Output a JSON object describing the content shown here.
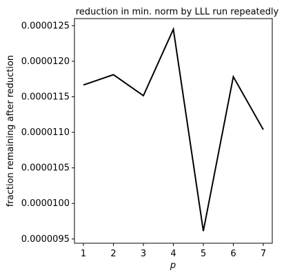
{
  "chart_data": {
    "type": "line",
    "title": "reduction in min. norm by LLL run repeatedly",
    "xlabel": "p",
    "ylabel": "fraction remaining after reduction",
    "x": [
      1,
      2,
      3,
      4,
      5,
      6,
      7
    ],
    "series": [
      {
        "values": [
          1.16661e-05,
          1.18113e-05,
          1.15158e-05,
          1.24505e-05,
          9.6116e-06,
          1.17828e-05,
          1.10378e-05
        ],
        "color": "#000000"
      }
    ],
    "xticks": [
      1,
      2,
      3,
      4,
      5,
      6,
      7
    ],
    "xtick_labels": [
      "1",
      "2",
      "3",
      "4",
      "5",
      "6",
      "7"
    ],
    "yticks": [
      9.5e-06,
      1e-05,
      1.05e-05,
      1.1e-05,
      1.15e-05,
      1.2e-05,
      1.25e-05
    ],
    "ytick_labels": [
      "0.0000095",
      "0.0000100",
      "0.0000105",
      "0.0000110",
      "0.0000115",
      "0.0000120",
      "0.0000125"
    ],
    "xlim": [
      0.7,
      7.3
    ],
    "ylim": [
      9.44e-06,
      1.26e-05
    ],
    "grid": false,
    "legend": "none"
  }
}
